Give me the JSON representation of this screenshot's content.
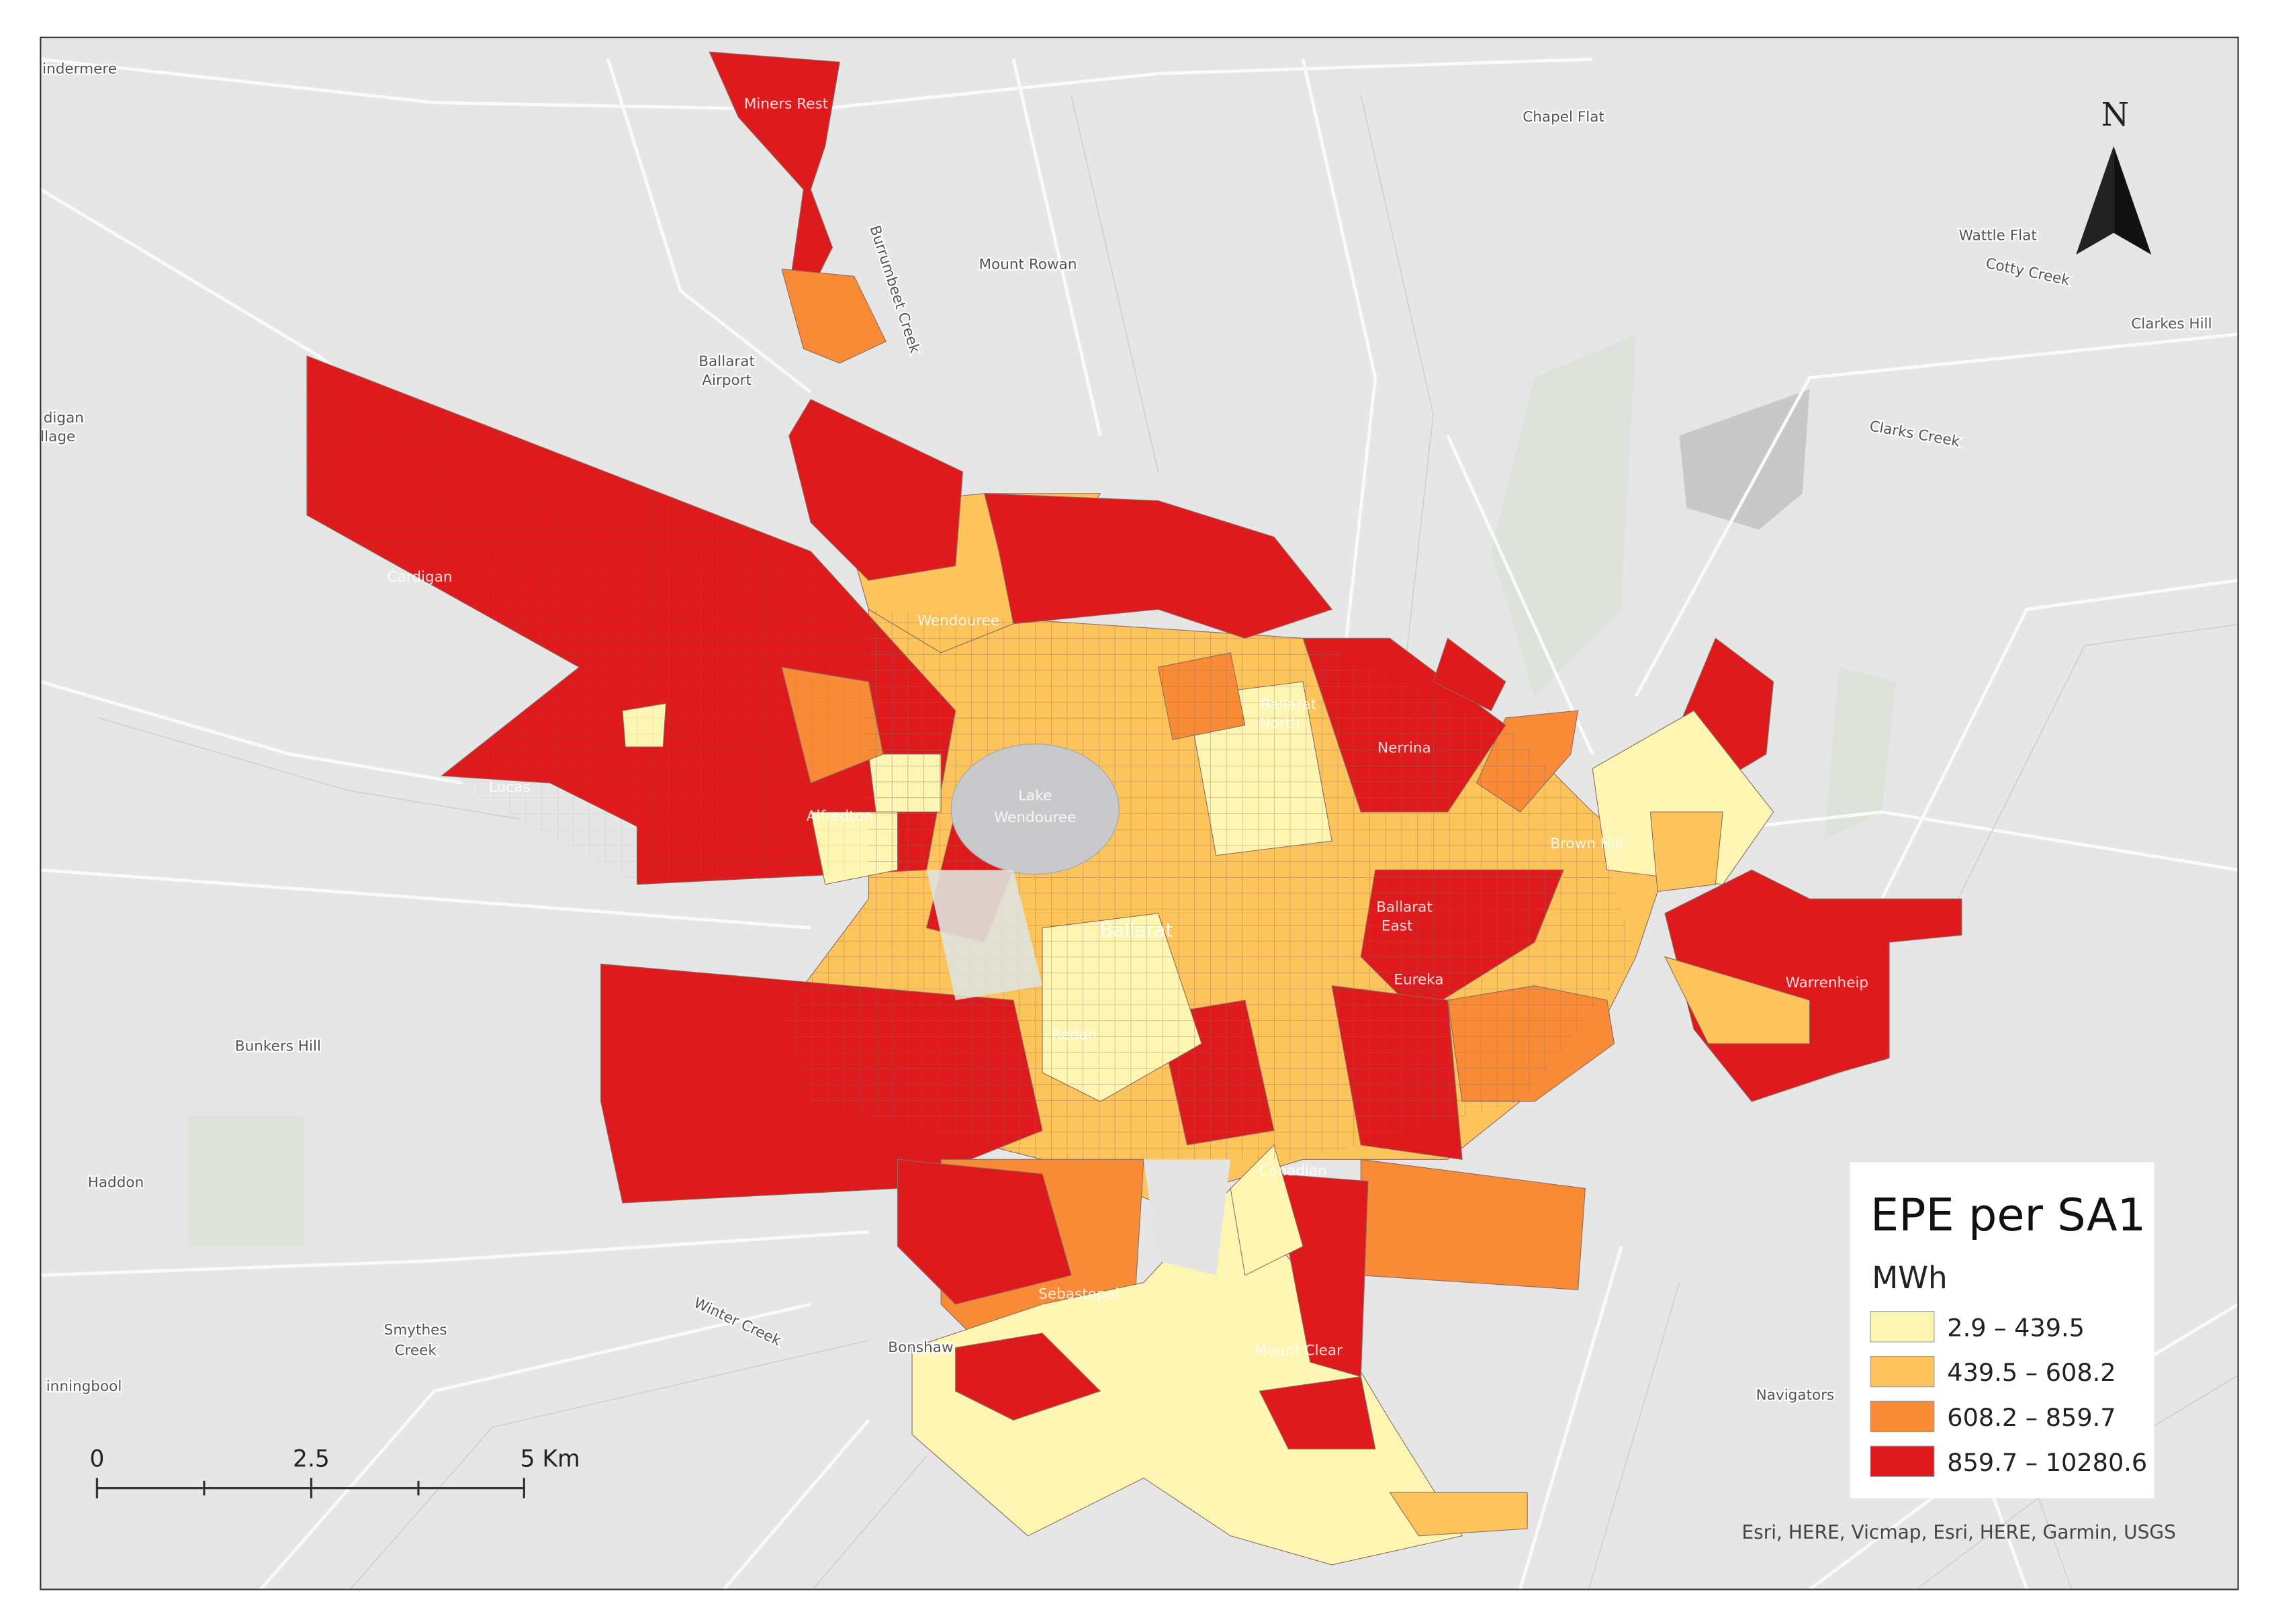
{
  "map": {
    "places": [
      "indermere",
      "Miners Rest",
      "Chapel Flat",
      "Mount Rowan",
      "Burrumbeet Creek",
      "Wattle Flat",
      "Cotty Creek",
      "Clarkes Hill",
      [
        "Ballarat",
        "Airport"
      ],
      [
        "digan",
        "llage"
      ],
      "Clarks Creek",
      "Cardigan",
      "Wendouree",
      [
        "Ballarat",
        "North"
      ],
      "Nerrina",
      [
        "Lake",
        "Wendouree"
      ],
      "Lucas",
      "Alfredton",
      "Brown Hill",
      [
        "Ballarat",
        "East"
      ],
      "Ballarat",
      "Eureka",
      "Warrenheip",
      "Bunkers Hill",
      "Redan",
      "Canadian",
      "Haddon",
      "Sebastopol",
      [
        "Smythes",
        "Creek"
      ],
      "Winter Creek",
      "Bonshaw",
      "Mount Clear",
      "Navigators",
      "inningbool"
    ],
    "legend": {
      "title": "EPE per SA1",
      "unit": "MWh",
      "items": [
        {
          "label": "2.9 – 439.5",
          "color": "#fdf6b3"
        },
        {
          "label": "439.5 – 608.2",
          "color": "#fcc45a"
        },
        {
          "label": "608.2 – 859.7",
          "color": "#f98b37"
        },
        {
          "label": "859.7 – 10280.6",
          "color": "#de1a1c"
        }
      ]
    },
    "scale_bar": {
      "labels": [
        "0",
        "2.5",
        "5 Km"
      ]
    },
    "north": "N",
    "attribution": "Esri, HERE, Vicmap, Esri, HERE, Garmin, USGS"
  }
}
